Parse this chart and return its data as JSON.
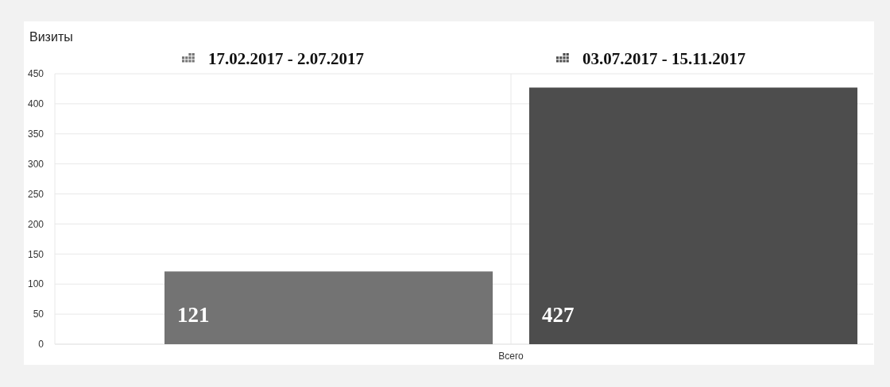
{
  "chart_data": {
    "type": "bar",
    "title": "Визиты",
    "categories": [
      "Всего"
    ],
    "series": [
      {
        "name": "17.02.2017 - 2.07.2017",
        "color": "#737373",
        "values": [
          121
        ]
      },
      {
        "name": "03.07.2017 - 15.11.2017",
        "color": "#4d4d4d",
        "values": [
          427
        ]
      }
    ],
    "ylim": [
      0,
      450
    ],
    "yticks": [
      0,
      50,
      100,
      150,
      200,
      250,
      300,
      350,
      400,
      450
    ],
    "grid": true,
    "legend": "top",
    "data_labels": true
  }
}
